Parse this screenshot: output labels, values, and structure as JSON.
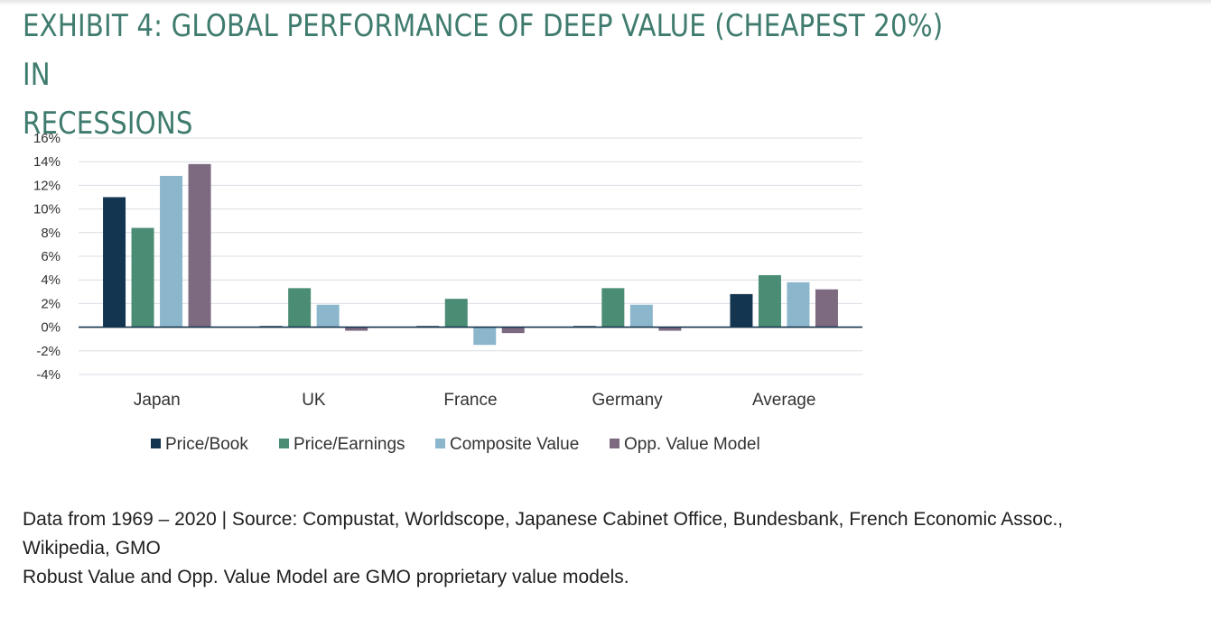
{
  "title": "EXHIBIT 4: GLOBAL PERFORMANCE OF DEEP VALUE (CHEAPEST 20%) IN RECESSIONS",
  "title_lines": [
    "EXHIBIT 4: GLOBAL PERFORMANCE OF DEEP VALUE (CHEAPEST 20%) IN",
    "RECESSIONS"
  ],
  "chart_data": {
    "type": "bar",
    "categories": [
      "Japan",
      "UK",
      "France",
      "Germany",
      "Average"
    ],
    "series": [
      {
        "name": "Price/Book",
        "color": "#14354f",
        "values": [
          11.0,
          0.1,
          0.1,
          0.1,
          2.8
        ]
      },
      {
        "name": "Price/Earnings",
        "color": "#4a8c74",
        "values": [
          8.4,
          3.3,
          2.4,
          3.3,
          4.4
        ]
      },
      {
        "name": "Composite Value",
        "color": "#8bb6cc",
        "values": [
          12.8,
          1.9,
          -1.5,
          1.9,
          3.8
        ]
      },
      {
        "name": "Opp. Value Model",
        "color": "#7d6a81",
        "values": [
          13.8,
          -0.3,
          -0.5,
          -0.3,
          3.2
        ]
      }
    ],
    "ylim": [
      -4,
      16
    ],
    "yticks": [
      16,
      14,
      12,
      10,
      8,
      6,
      4,
      2,
      0,
      -2,
      -4
    ],
    "ytick_labels": [
      "16%",
      "14%",
      "12%",
      "10%",
      "8%",
      "6%",
      "4%",
      "2%",
      "0%",
      "-2%",
      "-4%"
    ],
    "grid": true,
    "legend_position": "bottom"
  },
  "footer": {
    "line1": "Data from 1969 – 2020 | Source: Compustat, Worldscope, Japanese Cabinet Office, Bundesbank, French Economic Assoc.,",
    "line2": "Wikipedia, GMO",
    "line3": "Robust Value and Opp. Value Model are GMO proprietary value models."
  }
}
